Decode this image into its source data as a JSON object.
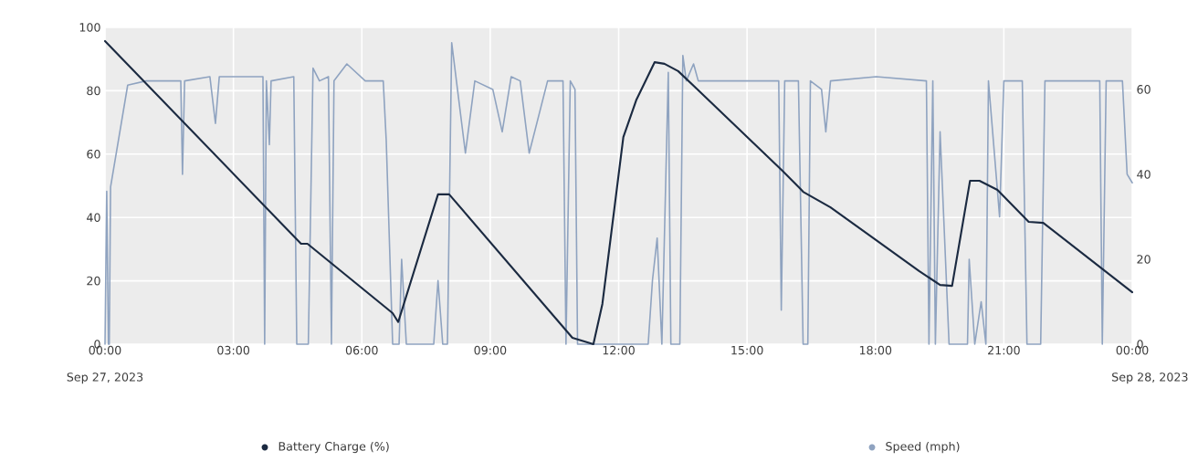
{
  "chart_data": {
    "type": "line",
    "xlim": [
      0,
      24
    ],
    "xticks": [
      {
        "value": 0,
        "label": "00:00"
      },
      {
        "value": 3,
        "label": "03:00"
      },
      {
        "value": 6,
        "label": "06:00"
      },
      {
        "value": 9,
        "label": "09:00"
      },
      {
        "value": 12,
        "label": "12:00"
      },
      {
        "value": 15,
        "label": "15:00"
      },
      {
        "value": 18,
        "label": "18:00"
      },
      {
        "value": 21,
        "label": "21:00"
      },
      {
        "value": 24,
        "label": "00:00"
      }
    ],
    "ylim": [
      0,
      100
    ],
    "yticks": [
      0,
      20,
      40,
      60,
      80,
      100
    ],
    "y2lim": [
      0,
      74.6
    ],
    "y2ticks": [
      0,
      20,
      40,
      60
    ],
    "grid": true,
    "legend": "bottom",
    "line_style": "solid",
    "annotations": [
      "Sep 27, 2023",
      "Sep 28, 2023"
    ],
    "series": [
      {
        "name": "Battery Charge (%)",
        "color": "#1b2a41",
        "axis": "y",
        "x": [
          0,
          4.58,
          4.73,
          6.72,
          6.85,
          7.78,
          8.04,
          10.92,
          11.41,
          11.62,
          12.11,
          12.41,
          12.84,
          13.07,
          13.39,
          13.82,
          15.82,
          16.25,
          16.31,
          16.95,
          19.02,
          19.51,
          19.79,
          20.21,
          20.43,
          20.85,
          21.58,
          21.92,
          24
        ],
        "values": [
          95.7,
          31.7,
          31.7,
          9.8,
          7,
          47.3,
          47.3,
          2,
          0,
          12.7,
          65.4,
          77,
          89,
          88.5,
          86.2,
          80.7,
          54.8,
          49,
          48.1,
          43.2,
          23.1,
          18.7,
          18.4,
          51.6,
          51.6,
          48.7,
          38.6,
          38.3,
          16.4
        ]
      },
      {
        "name": "Speed (mph)",
        "color": "#8fa3c0",
        "axis": "y2",
        "x": [
          0,
          0.04,
          0.08,
          0.1,
          0.13,
          0.53,
          0.96,
          1.49,
          1.77,
          1.81,
          1.86,
          2.45,
          2.58,
          2.67,
          3.69,
          3.73,
          3.77,
          3.84,
          3.88,
          4.41,
          4.48,
          4.75,
          4.86,
          5.01,
          5.22,
          5.29,
          5.35,
          5.65,
          6.08,
          6.5,
          6.57,
          6.72,
          6.87,
          6.93,
          7.04,
          7.68,
          7.78,
          7.89,
          8.0,
          8.1,
          8.21,
          8.42,
          8.64,
          9.06,
          9.28,
          9.49,
          9.7,
          9.91,
          10.34,
          10.7,
          10.77,
          10.87,
          10.98,
          11.04,
          12.69,
          12.79,
          12.9,
          13.01,
          13.16,
          13.22,
          13.43,
          13.5,
          13.58,
          13.75,
          13.86,
          15.74,
          15.8,
          15.88,
          16.2,
          16.31,
          16.42,
          16.48,
          16.74,
          16.84,
          16.95,
          18.02,
          19.19,
          19.25,
          19.34,
          19.4,
          19.51,
          19.72,
          20.15,
          20.19,
          20.32,
          20.47,
          20.58,
          20.64,
          20.9,
          21.0,
          21.43,
          21.54,
          21.86,
          21.96,
          23.24,
          23.3,
          23.39,
          23.77,
          23.88,
          24
        ],
        "values": [
          0,
          36,
          0,
          0,
          37,
          61,
          62,
          62,
          62,
          40,
          62,
          63,
          52,
          63,
          63,
          0,
          62,
          47,
          62,
          63,
          0,
          0,
          65,
          62,
          63,
          0,
          62,
          66,
          62,
          62,
          48,
          0,
          0,
          20,
          0,
          0,
          15,
          0,
          0,
          71,
          62,
          45,
          62,
          60,
          50,
          63,
          62,
          45,
          62,
          62,
          0,
          62,
          60,
          0,
          0,
          15,
          25,
          0,
          64,
          0,
          0,
          68,
          62,
          66,
          62,
          62,
          8,
          62,
          62,
          0,
          0,
          62,
          60,
          50,
          62,
          63,
          62,
          0,
          62,
          0,
          50,
          0,
          0,
          20,
          0,
          10,
          0,
          62,
          30,
          62,
          62,
          0,
          0,
          62,
          62,
          0,
          62,
          62,
          40,
          38
        ]
      }
    ]
  }
}
